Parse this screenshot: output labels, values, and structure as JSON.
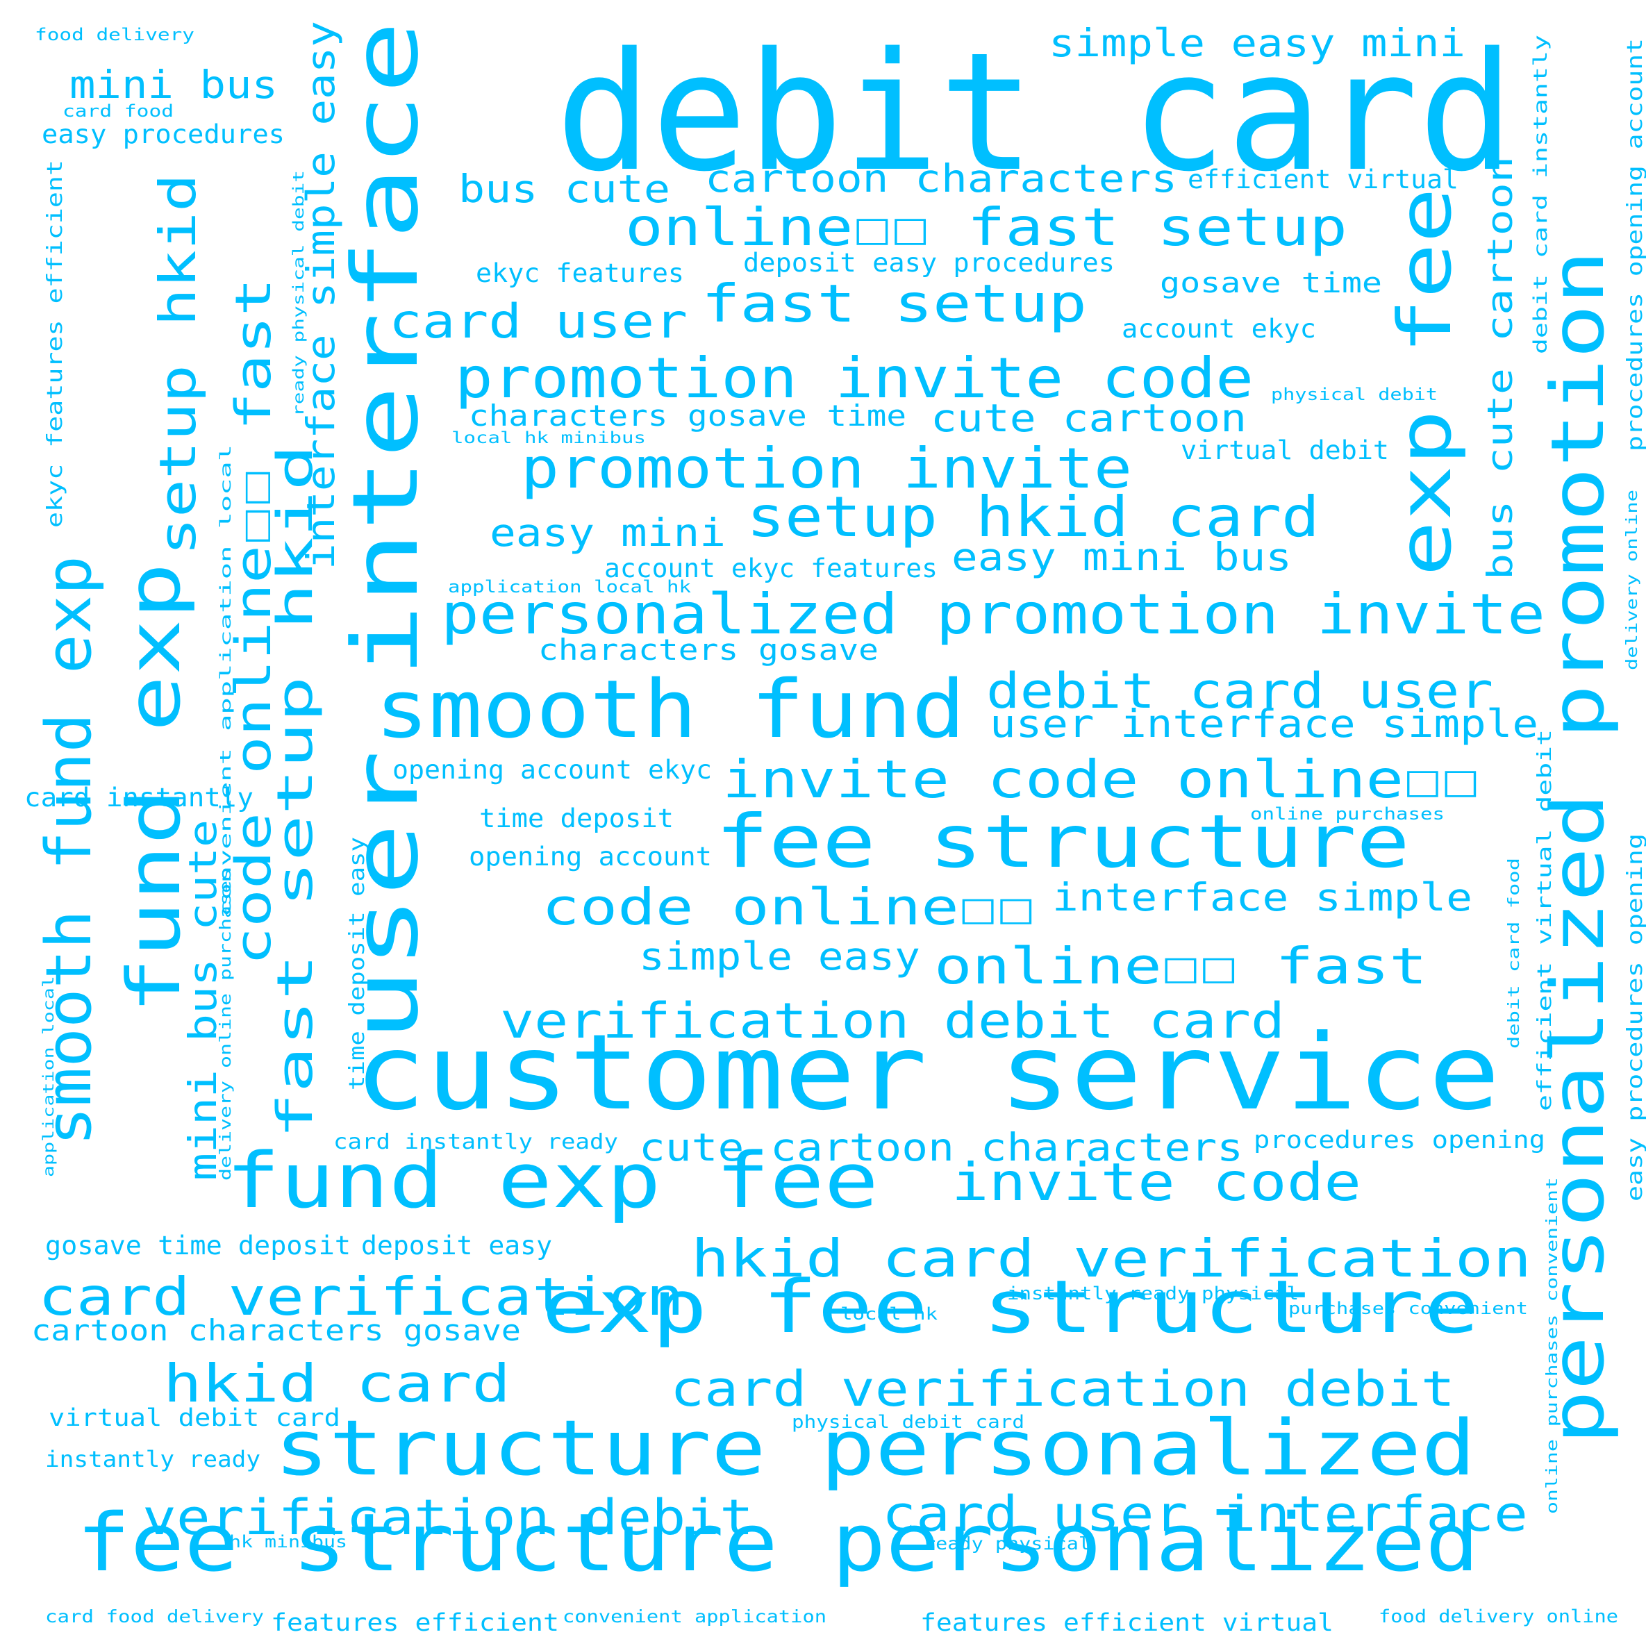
{
  "title": "word cloud",
  "text_color": "#00BFFF",
  "background_color": "#FFFFFF",
  "words": [
    {
      "text": "debit card"
    },
    {
      "text": "user interface"
    },
    {
      "text": "customer service"
    },
    {
      "text": "personalized promotion"
    },
    {
      "text": "smooth fund exp"
    },
    {
      "text": "fund exp fee"
    },
    {
      "text": "exp fee structure"
    },
    {
      "text": "fee structure personalized"
    },
    {
      "text": "structure personalized"
    },
    {
      "text": "smooth fund"
    },
    {
      "text": "fee structure"
    },
    {
      "text": "exp fee"
    },
    {
      "text": "fund exp"
    },
    {
      "text": "personalized promotion invite"
    },
    {
      "text": "promotion invite code"
    },
    {
      "text": "promotion invite"
    },
    {
      "text": "setup hkid card"
    },
    {
      "text": "hkid card verification"
    },
    {
      "text": "card verification"
    },
    {
      "text": "invite code"
    },
    {
      "text": "hkid card"
    },
    {
      "text": "verification debit card"
    },
    {
      "text": "card verification debit"
    },
    {
      "text": "verification debit"
    },
    {
      "text": "card user interface"
    },
    {
      "text": "invite code online☐☐"
    },
    {
      "text": "code online☐☐"
    },
    {
      "text": "online☐☐ fast setup"
    },
    {
      "text": "online☐☐ fast"
    },
    {
      "text": "fast setup"
    },
    {
      "text": "debit card user"
    },
    {
      "text": "card user"
    },
    {
      "text": "setup hkid"
    },
    {
      "text": "code online☐☐ fast"
    },
    {
      "text": "fast setup hkid"
    },
    {
      "text": "cartoon characters"
    },
    {
      "text": "cute cartoon characters"
    },
    {
      "text": "user interface simple"
    },
    {
      "text": "interface simple easy"
    },
    {
      "text": "interface simple"
    },
    {
      "text": "bus cute cartoon"
    },
    {
      "text": "mini bus"
    },
    {
      "text": "mini bus cute"
    },
    {
      "text": "simple easy mini"
    },
    {
      "text": "easy mini bus"
    },
    {
      "text": "easy mini"
    },
    {
      "text": "simple easy"
    },
    {
      "text": "bus cute"
    },
    {
      "text": "cute cartoon"
    },
    {
      "text": "characters gosave time"
    },
    {
      "text": "characters gosave"
    },
    {
      "text": "cartoon characters gosave"
    },
    {
      "text": "gosave time deposit"
    },
    {
      "text": "gosave time"
    },
    {
      "text": "time deposit"
    },
    {
      "text": "time deposit easy"
    },
    {
      "text": "deposit easy"
    },
    {
      "text": "deposit easy procedures"
    },
    {
      "text": "easy procedures"
    },
    {
      "text": "easy procedures opening"
    },
    {
      "text": "procedures opening"
    },
    {
      "text": "procedures opening account"
    },
    {
      "text": "opening account"
    },
    {
      "text": "opening account ekyc"
    },
    {
      "text": "account ekyc"
    },
    {
      "text": "account ekyc features"
    },
    {
      "text": "ekyc features"
    },
    {
      "text": "ekyc features efficient"
    },
    {
      "text": "features efficient"
    },
    {
      "text": "features efficient virtual"
    },
    {
      "text": "efficient virtual"
    },
    {
      "text": "efficient virtual debit"
    },
    {
      "text": "virtual debit"
    },
    {
      "text": "virtual debit card"
    },
    {
      "text": "debit card instantly"
    },
    {
      "text": "card instantly"
    },
    {
      "text": "card instantly ready"
    },
    {
      "text": "instantly ready"
    },
    {
      "text": "instantly ready physical"
    },
    {
      "text": "ready physical"
    },
    {
      "text": "ready physical debit"
    },
    {
      "text": "physical debit"
    },
    {
      "text": "physical debit card"
    },
    {
      "text": "debit card food"
    },
    {
      "text": "card food"
    },
    {
      "text": "card food delivery"
    },
    {
      "text": "food delivery"
    },
    {
      "text": "food delivery online"
    },
    {
      "text": "delivery online"
    },
    {
      "text": "delivery online purchases"
    },
    {
      "text": "online purchases"
    },
    {
      "text": "online purchases convenient"
    },
    {
      "text": "purchases convenient"
    },
    {
      "text": "convenient application"
    },
    {
      "text": "convenient application local"
    },
    {
      "text": "application local"
    },
    {
      "text": "application local hk"
    },
    {
      "text": "local hk"
    },
    {
      "text": "local hk minibus"
    },
    {
      "text": "hk minibus"
    }
  ]
}
